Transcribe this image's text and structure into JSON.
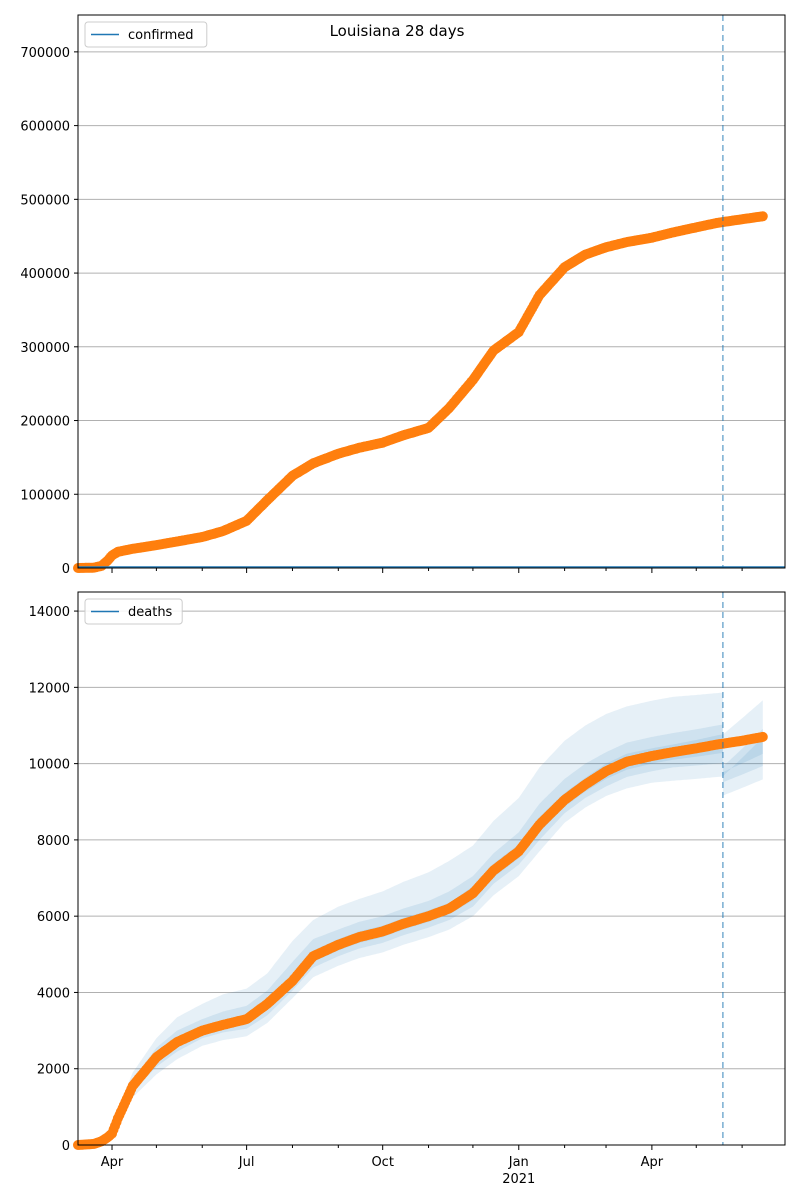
{
  "title": "Louisiana 28 days",
  "colors": {
    "observed": "#ff7f0e",
    "line": "#1f77b4",
    "band": "#1f77b4",
    "grid": "#b0b0b0"
  },
  "x_ticks": [
    "Apr",
    "Jul",
    "Oct",
    "Jan",
    "Apr"
  ],
  "x_year_label": "2021",
  "chart_data": [
    {
      "type": "scatter",
      "name": "confirmed",
      "legend": "confirmed",
      "legend_placement": "upper-left",
      "grid": "horizontal",
      "ylim": [
        0,
        750000
      ],
      "yticks": [
        "0",
        "100000",
        "200000",
        "300000",
        "400000",
        "500000",
        "600000",
        "700000"
      ],
      "ytick_values": [
        0,
        100000,
        200000,
        300000,
        400000,
        500000,
        600000,
        700000
      ],
      "x": [
        "2020-03-09",
        "2020-03-20",
        "2020-03-25",
        "2020-03-29",
        "2020-04-01",
        "2020-04-05",
        "2020-04-15",
        "2020-05-01",
        "2020-05-15",
        "2020-06-01",
        "2020-06-15",
        "2020-07-01",
        "2020-07-15",
        "2020-08-01",
        "2020-08-15",
        "2020-09-01",
        "2020-09-15",
        "2020-10-01",
        "2020-10-15",
        "2020-11-01",
        "2020-11-15",
        "2020-12-01",
        "2020-12-15",
        "2021-01-01",
        "2021-01-15",
        "2021-02-01",
        "2021-02-15",
        "2021-03-01",
        "2021-03-15",
        "2021-04-01",
        "2021-04-15",
        "2021-05-01",
        "2021-05-15",
        "2021-06-01",
        "2021-06-15"
      ],
      "values": [
        0,
        500,
        3000,
        10000,
        17000,
        22000,
        26000,
        31000,
        36000,
        42000,
        50000,
        64000,
        92000,
        125000,
        142000,
        155000,
        163000,
        170000,
        180000,
        190000,
        217000,
        255000,
        295000,
        320000,
        370000,
        408000,
        425000,
        435000,
        442000,
        448000,
        455000,
        462000,
        468000,
        473000,
        477000
      ],
      "vline": "2021-05-19"
    },
    {
      "type": "scatter",
      "name": "deaths",
      "legend": "deaths",
      "legend_placement": "upper-left",
      "grid": "horizontal",
      "ylim": [
        0,
        14500
      ],
      "yticks": [
        "0",
        "2000",
        "4000",
        "6000",
        "8000",
        "10000",
        "12000",
        "14000"
      ],
      "ytick_values": [
        0,
        2000,
        4000,
        6000,
        8000,
        10000,
        12000,
        14000
      ],
      "x": [
        "2020-03-09",
        "2020-03-20",
        "2020-03-25",
        "2020-03-29",
        "2020-04-01",
        "2020-04-05",
        "2020-04-15",
        "2020-05-01",
        "2020-05-15",
        "2020-06-01",
        "2020-06-15",
        "2020-07-01",
        "2020-07-15",
        "2020-08-01",
        "2020-08-15",
        "2020-09-01",
        "2020-09-15",
        "2020-10-01",
        "2020-10-15",
        "2020-11-01",
        "2020-11-15",
        "2020-12-01",
        "2020-12-15",
        "2021-01-01",
        "2021-01-15",
        "2021-02-01",
        "2021-02-15",
        "2021-03-01",
        "2021-03-15",
        "2021-04-01",
        "2021-04-15",
        "2021-05-01",
        "2021-05-15",
        "2021-06-01",
        "2021-06-15"
      ],
      "values": [
        0,
        30,
        100,
        200,
        300,
        700,
        1550,
        2300,
        2700,
        3000,
        3150,
        3300,
        3700,
        4300,
        4950,
        5250,
        5450,
        5600,
        5800,
        6000,
        6200,
        6600,
        7200,
        7700,
        8400,
        9050,
        9450,
        9800,
        10050,
        10200,
        10300,
        10400,
        10500,
        10600,
        10700
      ],
      "bands": [
        {
          "level": "outer",
          "lower": [
            0,
            20,
            70,
            150,
            220,
            500,
            1250,
            1850,
            2250,
            2600,
            2750,
            2850,
            3200,
            3850,
            4400,
            4700,
            4900,
            5050,
            5250,
            5450,
            5650,
            6000,
            6550,
            7050,
            7700,
            8450,
            8850,
            9150,
            9350,
            9500,
            9550,
            9600,
            9650,
            9700,
            9750
          ],
          "upper": [
            0,
            45,
            140,
            280,
            420,
            950,
            1900,
            2800,
            3350,
            3700,
            3950,
            4100,
            4500,
            5350,
            5900,
            6250,
            6450,
            6650,
            6900,
            7150,
            7450,
            7850,
            8500,
            9100,
            9900,
            10600,
            11000,
            11300,
            11500,
            11650,
            11750,
            11800,
            11850,
            11900,
            11950
          ]
        },
        {
          "level": "middle",
          "lower": [
            0,
            25,
            85,
            175,
            260,
            600,
            1400,
            2050,
            2450,
            2800,
            2950,
            3050,
            3400,
            4050,
            4650,
            4950,
            5150,
            5300,
            5500,
            5700,
            5900,
            6250,
            6850,
            7350,
            8000,
            8700,
            9100,
            9400,
            9650,
            9800,
            9900,
            9950,
            10000,
            10050,
            10100
          ],
          "upper": [
            0,
            38,
            120,
            240,
            360,
            820,
            1720,
            2550,
            3000,
            3300,
            3500,
            3650,
            4050,
            4800,
            5400,
            5650,
            5850,
            6000,
            6200,
            6400,
            6650,
            7050,
            7650,
            8200,
            8950,
            9600,
            10000,
            10300,
            10550,
            10700,
            10800,
            10900,
            11000,
            11100,
            11200
          ]
        },
        {
          "level": "inner",
          "lower": [
            0,
            28,
            92,
            188,
            280,
            650,
            1480,
            2180,
            2580,
            2900,
            3050,
            3180,
            3550,
            4180,
            4800,
            5100,
            5300,
            5450,
            5650,
            5850,
            6050,
            6420,
            7020,
            7520,
            8200,
            8870,
            9270,
            9600,
            9840,
            10000,
            10100,
            10180,
            10260,
            10340,
            10420
          ],
          "upper": [
            0,
            33,
            108,
            215,
            320,
            750,
            1620,
            2420,
            2820,
            3100,
            3250,
            3420,
            3850,
            4420,
            5100,
            5400,
            5600,
            5750,
            5950,
            6150,
            6350,
            6780,
            7380,
            7880,
            8600,
            9230,
            9630,
            10000,
            10260,
            10400,
            10500,
            10620,
            10740,
            10860,
            10980
          ]
        }
      ],
      "vline": "2021-05-19"
    }
  ]
}
